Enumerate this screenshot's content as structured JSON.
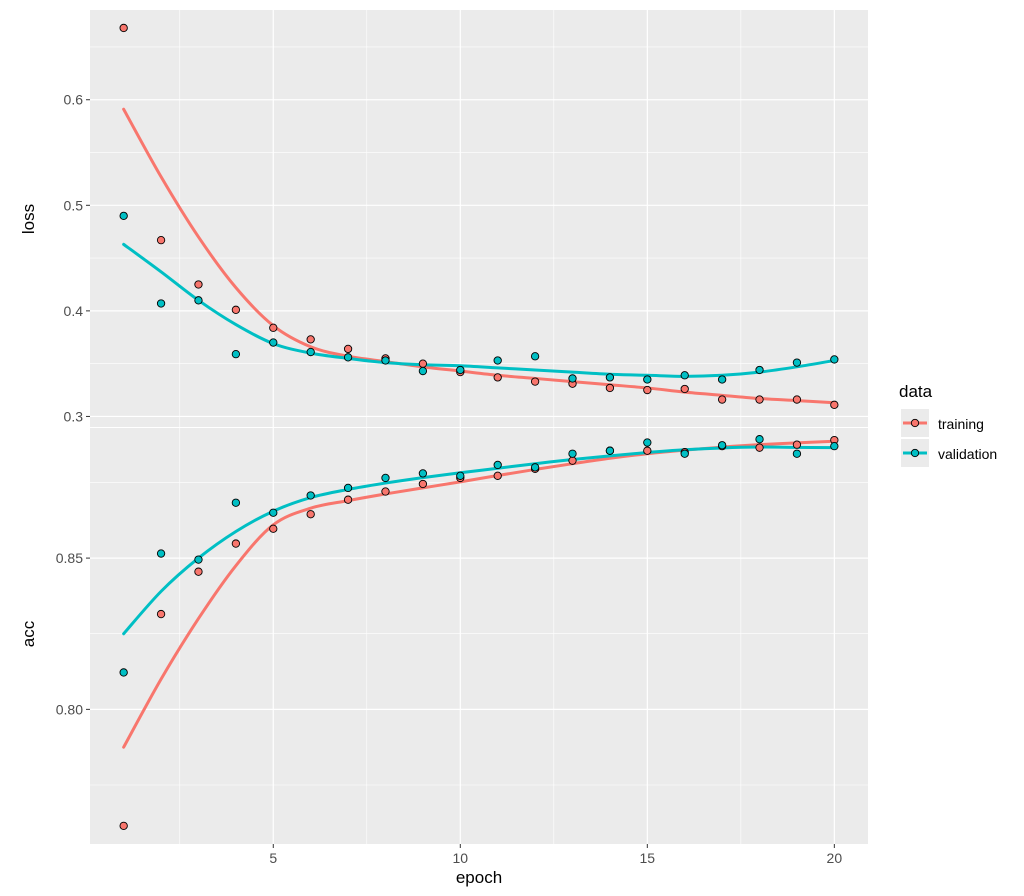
{
  "chart_data": {
    "type": "scatter",
    "x_label": "epoch",
    "x_ticks": [
      5,
      10,
      15,
      20
    ],
    "xlim": [
      0.1,
      20.9
    ],
    "legend": {
      "title": "data",
      "position": "right",
      "entries": [
        "training",
        "validation"
      ]
    },
    "colors": {
      "training": "#F8766D",
      "validation": "#00BFC4",
      "panel_background": "#EBEBEB",
      "grid": "#FFFFFF"
    },
    "grid": true,
    "panels": [
      {
        "y_label": "loss",
        "ylim": [
          0.29,
          0.685
        ],
        "y_ticks": [
          0.3,
          0.4,
          0.5,
          0.6
        ],
        "y_tick_labels": [
          "0.3",
          "0.4",
          "0.5",
          "0.6"
        ],
        "series": [
          {
            "name": "training",
            "points": [
              [
                1,
                0.668
              ],
              [
                2,
                0.467
              ],
              [
                3,
                0.425
              ],
              [
                4,
                0.401
              ],
              [
                5,
                0.384
              ],
              [
                6,
                0.373
              ],
              [
                7,
                0.364
              ],
              [
                8,
                0.355
              ],
              [
                9,
                0.35
              ],
              [
                10,
                0.342
              ],
              [
                11,
                0.337
              ],
              [
                12,
                0.333
              ],
              [
                13,
                0.331
              ],
              [
                14,
                0.327
              ],
              [
                15,
                0.325
              ],
              [
                16,
                0.326
              ],
              [
                17,
                0.316
              ],
              [
                18,
                0.316
              ],
              [
                19,
                0.316
              ],
              [
                20,
                0.311
              ]
            ],
            "smooth": [
              [
                1,
                0.591
              ],
              [
                2,
                0.527
              ],
              [
                3,
                0.47
              ],
              [
                4,
                0.422
              ],
              [
                5,
                0.386
              ],
              [
                6,
                0.366
              ],
              [
                7,
                0.357
              ],
              [
                8,
                0.352
              ],
              [
                9,
                0.347
              ],
              [
                10,
                0.343
              ],
              [
                11,
                0.339
              ],
              [
                12,
                0.336
              ],
              [
                13,
                0.333
              ],
              [
                14,
                0.33
              ],
              [
                15,
                0.327
              ],
              [
                16,
                0.323
              ],
              [
                17,
                0.32
              ],
              [
                18,
                0.317
              ],
              [
                19,
                0.315
              ],
              [
                20,
                0.313
              ]
            ]
          },
          {
            "name": "validation",
            "points": [
              [
                1,
                0.49
              ],
              [
                2,
                0.407
              ],
              [
                3,
                0.41
              ],
              [
                4,
                0.359
              ],
              [
                5,
                0.37
              ],
              [
                6,
                0.361
              ],
              [
                7,
                0.356
              ],
              [
                8,
                0.353
              ],
              [
                9,
                0.343
              ],
              [
                10,
                0.344
              ],
              [
                11,
                0.353
              ],
              [
                12,
                0.357
              ],
              [
                13,
                0.336
              ],
              [
                14,
                0.337
              ],
              [
                15,
                0.335
              ],
              [
                16,
                0.339
              ],
              [
                17,
                0.335
              ],
              [
                18,
                0.344
              ],
              [
                19,
                0.351
              ],
              [
                20,
                0.354
              ]
            ],
            "smooth": [
              [
                1,
                0.463
              ],
              [
                2,
                0.437
              ],
              [
                3,
                0.41
              ],
              [
                4,
                0.387
              ],
              [
                5,
                0.369
              ],
              [
                6,
                0.36
              ],
              [
                7,
                0.355
              ],
              [
                8,
                0.351
              ],
              [
                9,
                0.349
              ],
              [
                10,
                0.348
              ],
              [
                11,
                0.346
              ],
              [
                12,
                0.344
              ],
              [
                13,
                0.342
              ],
              [
                14,
                0.34
              ],
              [
                15,
                0.339
              ],
              [
                16,
                0.338
              ],
              [
                17,
                0.339
              ],
              [
                18,
                0.342
              ],
              [
                19,
                0.347
              ],
              [
                20,
                0.353
              ]
            ]
          }
        ]
      },
      {
        "y_label": "acc",
        "ylim": [
          0.7555,
          0.893
        ],
        "y_ticks": [
          0.8,
          0.85
        ],
        "y_tick_labels": [
          "0.80",
          "0.85"
        ],
        "series": [
          {
            "name": "training",
            "points": [
              [
                1,
                0.7615
              ],
              [
                2,
                0.8315
              ],
              [
                3,
                0.8455
              ],
              [
                4,
                0.8548
              ],
              [
                5,
                0.8597
              ],
              [
                6,
                0.8645
              ],
              [
                7,
                0.8693
              ],
              [
                8,
                0.872
              ],
              [
                9,
                0.8745
              ],
              [
                10,
                0.8765
              ],
              [
                11,
                0.8772
              ],
              [
                12,
                0.8795
              ],
              [
                13,
                0.8822
              ],
              [
                14,
                0.8855
              ],
              [
                15,
                0.8855
              ],
              [
                16,
                0.885
              ],
              [
                17,
                0.887
              ],
              [
                18,
                0.8865
              ],
              [
                19,
                0.8875
              ],
              [
                20,
                0.889
              ]
            ],
            "smooth": [
              [
                1,
                0.7875
              ],
              [
                2,
                0.81
              ],
              [
                3,
                0.83
              ],
              [
                4,
                0.8475
              ],
              [
                5,
                0.861
              ],
              [
                6,
                0.8665
              ],
              [
                7,
                0.869
              ],
              [
                8,
                0.8712
              ],
              [
                9,
                0.8732
              ],
              [
                10,
                0.8752
              ],
              [
                11,
                0.8773
              ],
              [
                12,
                0.8793
              ],
              [
                13,
                0.8812
              ],
              [
                14,
                0.883
              ],
              [
                15,
                0.8845
              ],
              [
                16,
                0.8857
              ],
              [
                17,
                0.8867
              ],
              [
                18,
                0.8875
              ],
              [
                19,
                0.8881
              ],
              [
                20,
                0.8886
              ]
            ]
          },
          {
            "name": "validation",
            "points": [
              [
                1,
                0.8122
              ],
              [
                2,
                0.8515
              ],
              [
                3,
                0.8495
              ],
              [
                4,
                0.8683
              ],
              [
                5,
                0.865
              ],
              [
                6,
                0.8707
              ],
              [
                7,
                0.8732
              ],
              [
                8,
                0.8765
              ],
              [
                9,
                0.878
              ],
              [
                10,
                0.8772
              ],
              [
                11,
                0.8808
              ],
              [
                12,
                0.88
              ],
              [
                13,
                0.8845
              ],
              [
                14,
                0.8855
              ],
              [
                15,
                0.8882
              ],
              [
                16,
                0.8845
              ],
              [
                17,
                0.8873
              ],
              [
                18,
                0.8893
              ],
              [
                19,
                0.8845
              ],
              [
                20,
                0.887
              ]
            ],
            "smooth": [
              [
                1,
                0.825
              ],
              [
                2,
                0.839
              ],
              [
                3,
                0.85
              ],
              [
                4,
                0.8588
              ],
              [
                5,
                0.8655
              ],
              [
                6,
                0.87
              ],
              [
                7,
                0.8727
              ],
              [
                8,
                0.8748
              ],
              [
                9,
                0.8766
              ],
              [
                10,
                0.8782
              ],
              [
                11,
                0.8797
              ],
              [
                12,
                0.8812
              ],
              [
                13,
                0.8826
              ],
              [
                14,
                0.8838
              ],
              [
                15,
                0.8849
              ],
              [
                16,
                0.8858
              ],
              [
                17,
                0.8864
              ],
              [
                18,
                0.8867
              ],
              [
                19,
                0.8866
              ],
              [
                20,
                0.8865
              ]
            ]
          }
        ]
      }
    ]
  }
}
